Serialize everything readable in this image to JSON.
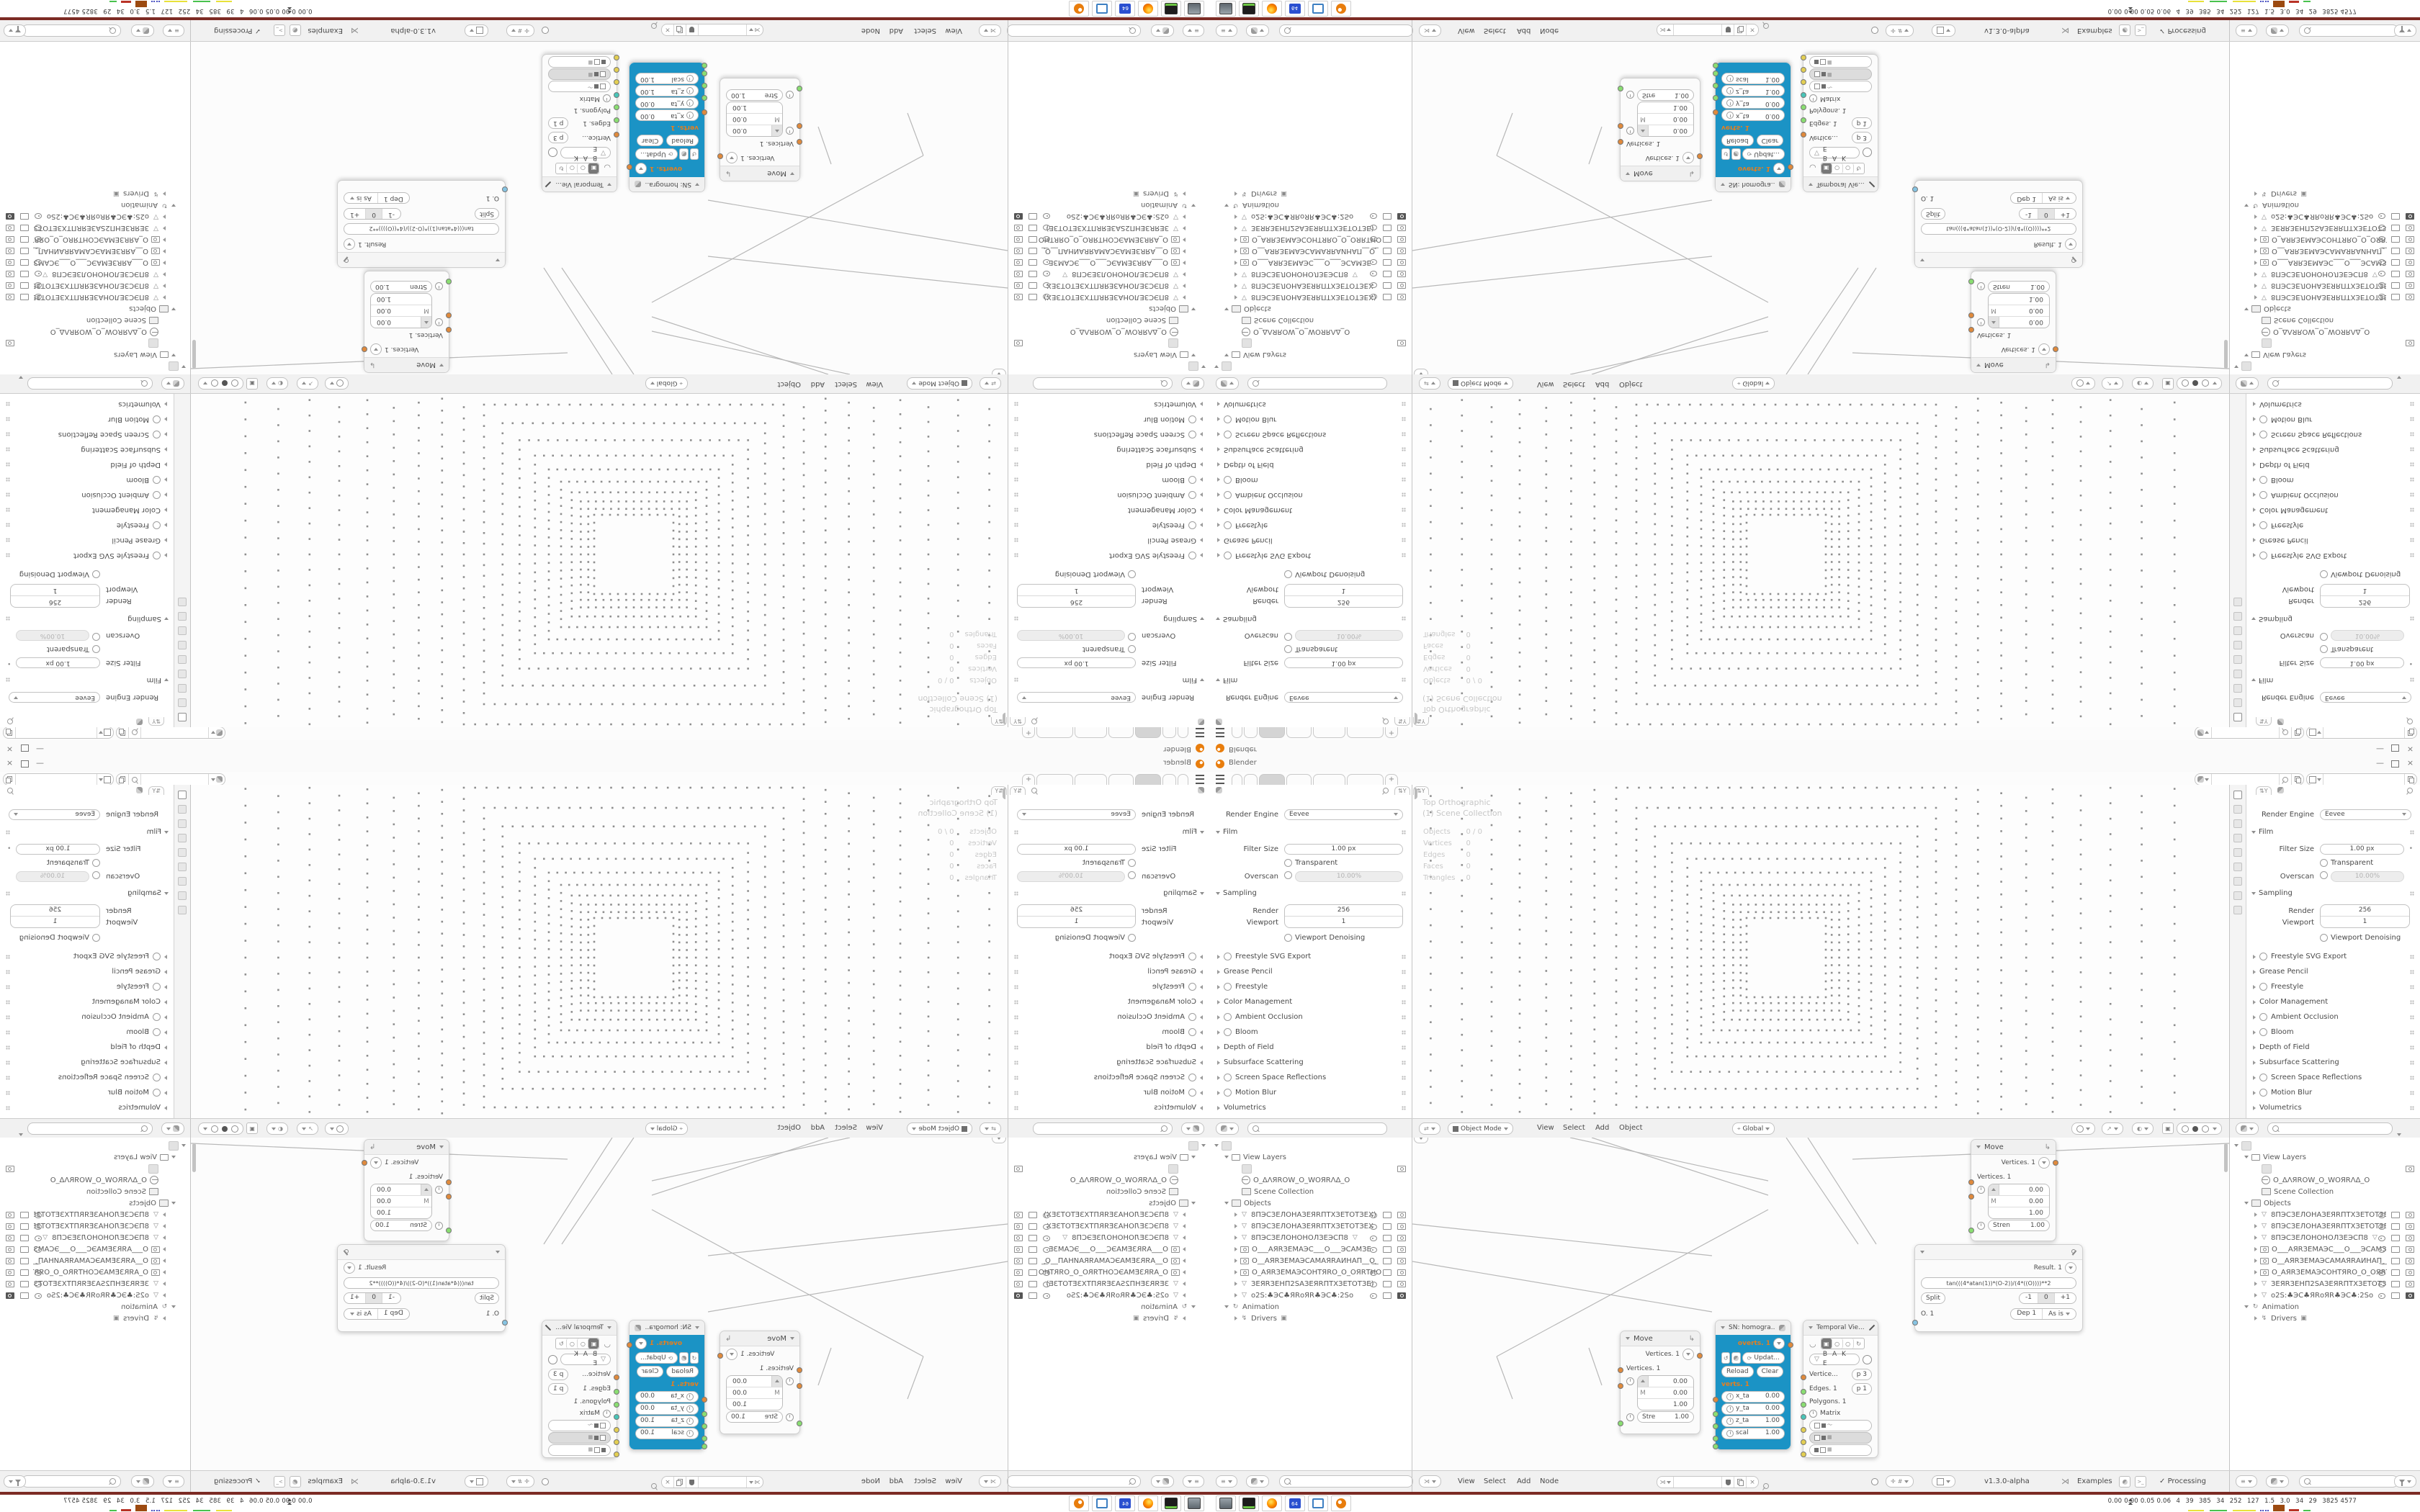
{
  "colors": {
    "accent_cyan": "#1b93c5",
    "socket_orange": "#e08a3c",
    "socket_green": "#8ade72",
    "socket_yellow": "#e3cf53",
    "socket_teal": "#49c5b8",
    "socket_blue": "#86c4e3",
    "taskbar_line_maroon": "#7c2b24",
    "blender_orange": "#e87d0d"
  },
  "titlebar": {
    "title": "Blender"
  },
  "topbar": {
    "add_tab": "+",
    "tab_widths": [
      13,
      17,
      34,
      33,
      43,
      49
    ],
    "active_tab": 2
  },
  "props": {
    "engine_label": "Render Engine",
    "engine_value": "Eevee",
    "film": {
      "title": "Film",
      "filter_label": "Filter Size",
      "filter_value": "1.00 px",
      "transparent": "Transparent",
      "overscan_label": "Overscan",
      "overscan_value": "10.00%"
    },
    "sampling": {
      "title": "Sampling",
      "render_label": "Render",
      "render_value": "256",
      "viewport_label": "Viewport",
      "viewport_value": "1",
      "denoising": "Viewport Denoising"
    },
    "sections": [
      {
        "label": "Freestyle SVG Export",
        "toggle": true
      },
      {
        "label": "Grease Pencil",
        "toggle": false
      },
      {
        "label": "Freestyle",
        "toggle": true
      },
      {
        "label": "Color Management",
        "toggle": false
      },
      {
        "label": "Ambient Occlusion",
        "toggle": true
      },
      {
        "label": "Bloom",
        "toggle": true
      },
      {
        "label": "Depth of Field",
        "toggle": false
      },
      {
        "label": "Subsurface Scattering",
        "toggle": false
      },
      {
        "label": "Screen Space Reflections",
        "toggle": true
      },
      {
        "label": "Motion Blur",
        "toggle": true
      },
      {
        "label": "Volumetrics",
        "toggle": false
      }
    ]
  },
  "viewport": {
    "axis_label": "Top Orthographic",
    "collection_label": "(1) Scene Collection",
    "stats": [
      {
        "label": "Objects",
        "value": "0 / 0"
      },
      {
        "label": "Vertices",
        "value": "0"
      },
      {
        "label": "Edges",
        "value": "0"
      },
      {
        "label": "Faces",
        "value": "0"
      },
      {
        "label": "Triangles",
        "value": "0"
      }
    ],
    "header": {
      "mode": "Object Mode",
      "menus": [
        "View",
        "Select",
        "Add",
        "Object"
      ],
      "orientation": "Global"
    }
  },
  "outliner": {
    "rows": [
      {
        "d": 0,
        "a": "v",
        "i": "render",
        "t": ""
      },
      {
        "d": 1,
        "a": "v",
        "i": "img",
        "t": "View Layers"
      },
      {
        "d": 2,
        "a": "",
        "i": "imgbox",
        "t": "",
        "e": 0,
        "s": 0,
        "c": 1
      },
      {
        "d": 2,
        "a": "",
        "i": "world",
        "t": "O_ΔΛЯROW_O_WOЯRΛΔ_O"
      },
      {
        "d": 2,
        "a": "",
        "i": "coll",
        "t": "Scene Collection"
      },
      {
        "d": 1,
        "a": "v",
        "i": "coll",
        "t": "Objects"
      },
      {
        "d": 2,
        "a": "r",
        "i": "mesh",
        "t": "8ПЭСЗЕЛОНАЗЕЯRПТХЗЕТОТЗЕХ)",
        "e": 1,
        "s": 1,
        "c": 1
      },
      {
        "d": 2,
        "a": "r",
        "i": "mesh",
        "t": "8ПЭСЗЕЛОНАЗЕЯRПТХЗЕТОТЗЕХ",
        "e": 1,
        "s": 1,
        "c": 1
      },
      {
        "d": 2,
        "a": "r",
        "i": "mesh",
        "t": "8ПЭСЗЕЛОНОНОЛЗЕЭСП8",
        "x": "▽",
        "e": 1,
        "s": 1,
        "c": 1
      },
      {
        "d": 2,
        "a": "r",
        "i": "cam",
        "t": "О___АЯRЗЕМАЭС___О___ЭСАМЗЕ",
        "e": 1,
        "s": 1,
        "c": 1
      },
      {
        "d": 2,
        "a": "r",
        "i": "cam",
        "t": "О__АЯRЗЕМАЭСАМАЯRАИНАП__О_",
        "e": 2,
        "s": 1,
        "c": 1
      },
      {
        "d": 2,
        "a": "r",
        "i": "cam",
        "t": "О_АЯRЗЕМАЭСОНТЯRО_О_ОЯRТНО",
        "e": 1,
        "s": 1,
        "c": 1
      },
      {
        "d": 2,
        "a": "r",
        "i": "mesh",
        "t": "ЗЕЯRЗЕНП2SАЗЕЯRПТХЗЕТОТЗЕ)",
        "e": 1,
        "s": 1,
        "c": 1
      },
      {
        "d": 2,
        "a": "r",
        "i": "mesh",
        "t": "о2S:♣ЭС♣ЯRоЯR♣ЭС♣:2Sо",
        "e": 1,
        "s": 1,
        "c": 2
      },
      {
        "d": 1,
        "a": "v",
        "i": "anim",
        "t": "Animation"
      },
      {
        "d": 2,
        "a": "r",
        "i": "drv",
        "t": "Drivers",
        "x": "▣"
      }
    ]
  },
  "node_editor": {
    "header": {
      "menus": [
        "View",
        "Select",
        "Add",
        "Node"
      ],
      "version": "v1.3.0-alpha",
      "examples_label": "Examples",
      "processing_label": "Processing",
      "processing_check": "✓"
    },
    "move1": {
      "title": "Move",
      "out": "Vertices. 1",
      "in": "Vertices. 1",
      "m": "M",
      "v1": "0.00",
      "v2": "0.00",
      "v3": "1.00",
      "stren_label": "Stre",
      "stren": "1.00"
    },
    "move2": {
      "title": "Move",
      "out": "Vertices. 1",
      "in": "Vertices. 1",
      "m": "M",
      "v1": "0.00",
      "v2": "0.00",
      "v3": "1.00",
      "stren_label": "Stren",
      "stren": "1.00"
    },
    "sn": {
      "title": "SN: homogra..",
      "out": "overts. 1",
      "update": "Updat...",
      "reload": "Reload",
      "clear": "Clear",
      "in": "verts. 1",
      "f1k": "x_ta",
      "f1v": "0.00",
      "f2k": "y_ta",
      "f2v": "0.00",
      "f3k": "z_ta",
      "f3v": "1.00",
      "f4k": "scal",
      "f4v": "1.00"
    },
    "temporal": {
      "title": "Temporal Vie...",
      "bake": "B A K E",
      "r1l": "Vertice...",
      "r1v": "p 3",
      "r2l": "Edges. 1",
      "r2v": "p 1",
      "r3l": "Polygons. 1",
      "r4l": "Matrix"
    },
    "formula": {
      "result": "Result. 1",
      "expr": "tan(((4*atan(1))*(O-2))/(4*((O))))**2",
      "split": "Split",
      "s1": "-1",
      "s2": "0",
      "s3": "+1",
      "out": "O. 1",
      "dep": "Dep 1",
      "mode": "As is"
    }
  },
  "taskbar": {
    "apps": [
      "settings-monitor",
      "disk-utility",
      "firefox",
      "floppy-64",
      "image-viewer",
      "blender"
    ],
    "monitor": "0.00 0.00 0.05 0.06  4  39  385  34  252  127  1.5  3.0  34  29  3825 4577"
  }
}
